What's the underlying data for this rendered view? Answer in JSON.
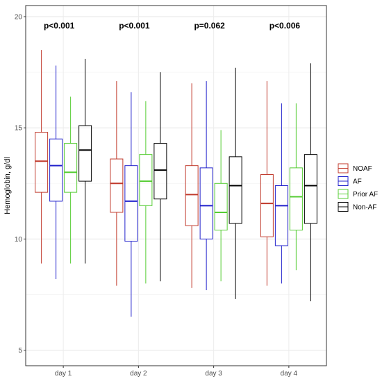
{
  "chart_data": {
    "type": "box",
    "ylabel": "Hemoglobin, g/dl",
    "xlabel": "",
    "ylim": [
      4.3,
      20.5
    ],
    "yticks": [
      5,
      10,
      15,
      20
    ],
    "grid": true,
    "legend_position": "right",
    "categories": [
      "day 1",
      "day 2",
      "day 3",
      "day 4"
    ],
    "pvalues": [
      "p<0.001",
      "p<0.001",
      "p=0.062",
      "p<0.006"
    ],
    "series": [
      {
        "name": "NOAF",
        "color": "#c0392b",
        "boxes": [
          {
            "min": 8.9,
            "q1": 12.1,
            "median": 13.5,
            "q3": 14.8,
            "max": 18.5
          },
          {
            "min": 7.9,
            "q1": 11.2,
            "median": 12.5,
            "q3": 13.6,
            "max": 17.1
          },
          {
            "min": 7.8,
            "q1": 10.6,
            "median": 12.0,
            "q3": 13.3,
            "max": 17.0
          },
          {
            "min": 7.9,
            "q1": 10.1,
            "median": 11.6,
            "q3": 12.9,
            "max": 17.1
          }
        ]
      },
      {
        "name": "AF",
        "color": "#2222cc",
        "boxes": [
          {
            "min": 8.2,
            "q1": 11.7,
            "median": 13.3,
            "q3": 14.5,
            "max": 17.8
          },
          {
            "min": 6.5,
            "q1": 9.9,
            "median": 11.7,
            "q3": 13.3,
            "max": 16.6
          },
          {
            "min": 7.7,
            "q1": 10.0,
            "median": 11.5,
            "q3": 13.2,
            "max": 17.1
          },
          {
            "min": 8.0,
            "q1": 9.7,
            "median": 11.5,
            "q3": 12.4,
            "max": 16.1
          }
        ]
      },
      {
        "name": "Prior AF",
        "color": "#55cc33",
        "boxes": [
          {
            "min": 8.9,
            "q1": 12.1,
            "median": 13.0,
            "q3": 14.3,
            "max": 16.4
          },
          {
            "min": 8.0,
            "q1": 11.5,
            "median": 12.6,
            "q3": 13.8,
            "max": 16.2
          },
          {
            "min": 8.1,
            "q1": 10.4,
            "median": 11.2,
            "q3": 12.5,
            "max": 14.9
          },
          {
            "min": 8.6,
            "q1": 10.4,
            "median": 11.9,
            "q3": 13.2,
            "max": 16.1
          }
        ]
      },
      {
        "name": "Non-AF",
        "color": "#000000",
        "boxes": [
          {
            "min": 8.9,
            "q1": 12.6,
            "median": 14.0,
            "q3": 15.1,
            "max": 18.1
          },
          {
            "min": 8.1,
            "q1": 11.8,
            "median": 13.1,
            "q3": 14.3,
            "max": 17.5
          },
          {
            "min": 7.3,
            "q1": 10.7,
            "median": 12.4,
            "q3": 13.7,
            "max": 17.7
          },
          {
            "min": 7.2,
            "q1": 10.7,
            "median": 12.4,
            "q3": 13.8,
            "max": 17.9
          }
        ]
      }
    ]
  }
}
